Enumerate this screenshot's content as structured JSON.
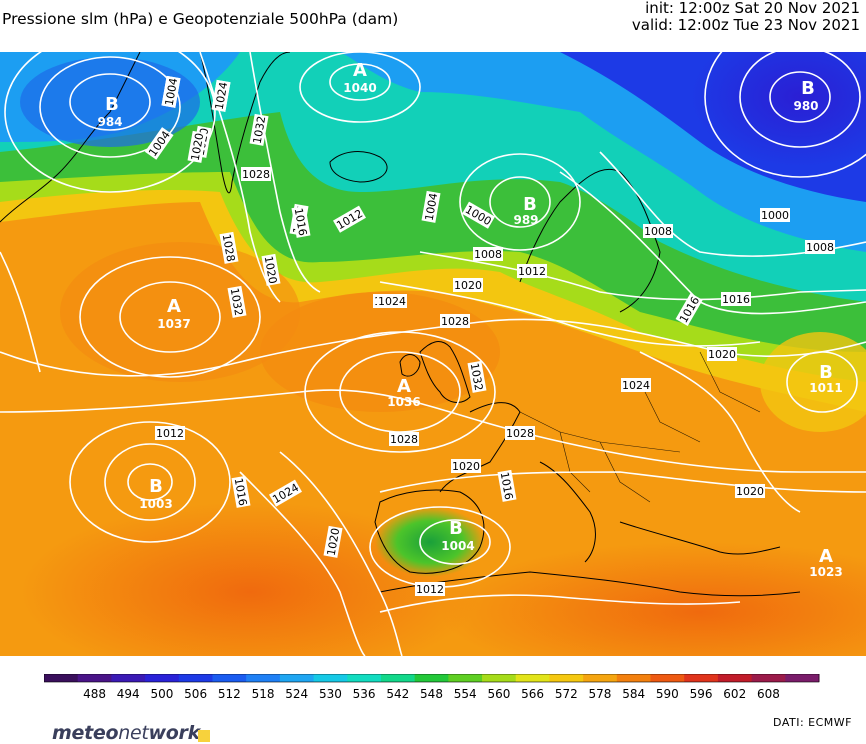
{
  "header": {
    "title": "Pressione slm (hPa) e Geopotenziale 500hPa (dam)",
    "init": "init: 12:00z Sat 20 Nov 2021",
    "valid": "valid: 12:00z Tue 23 Nov 2021"
  },
  "pressure_centers": [
    {
      "type": "A",
      "value": "1040"
    },
    {
      "type": "B",
      "value": "984"
    },
    {
      "type": "B",
      "value": "980"
    },
    {
      "type": "B",
      "value": "989"
    },
    {
      "type": "A",
      "value": "1037"
    },
    {
      "type": "A",
      "value": "1036"
    },
    {
      "type": "B",
      "value": "1003"
    },
    {
      "type": "B",
      "value": "1004"
    },
    {
      "type": "B",
      "value": "1011"
    },
    {
      "type": "A",
      "value": "1023"
    }
  ],
  "isobar_labels": [
    "1004",
    "1008",
    "1020",
    "1024",
    "1032",
    "1004",
    "1020",
    "1024",
    "1028",
    "1016",
    "1012",
    "1000",
    "1004",
    "1008",
    "1000",
    "1008",
    "1028",
    "1032",
    "1020",
    "1016",
    "1020",
    "1024",
    "1012",
    "1016",
    "1008",
    "1016",
    "1024",
    "1028",
    "1032",
    "1028",
    "1028",
    "1020",
    "1016",
    "1024",
    "1020",
    "1020",
    "1012",
    "1016",
    "1012",
    "1020",
    "1024",
    "1024",
    "1028"
  ],
  "colorbar": {
    "ticks": [
      "488",
      "494",
      "500",
      "506",
      "512",
      "518",
      "524",
      "530",
      "536",
      "542",
      "548",
      "554",
      "560",
      "566",
      "572",
      "578",
      "584",
      "590",
      "596",
      "602",
      "608"
    ],
    "colors": [
      "#3a0f5c",
      "#4a1488",
      "#3b1ab5",
      "#2a22d8",
      "#1d3ae6",
      "#1b5cf0",
      "#1f80f5",
      "#1fa6f2",
      "#16c9e6",
      "#12dcc0",
      "#12d88a",
      "#23c83a",
      "#5fcf23",
      "#a6dc1a",
      "#e2e41a",
      "#f5c810",
      "#f5a510",
      "#f3800e",
      "#ee5a12",
      "#e0341c",
      "#c11c2a",
      "#9b1b4a",
      "#7a1c6a"
    ]
  },
  "footer": {
    "logo_text_bold": "meteo",
    "logo_text_mid": "net",
    "logo_text_end": "work",
    "source": "DATI: ECMWF"
  }
}
